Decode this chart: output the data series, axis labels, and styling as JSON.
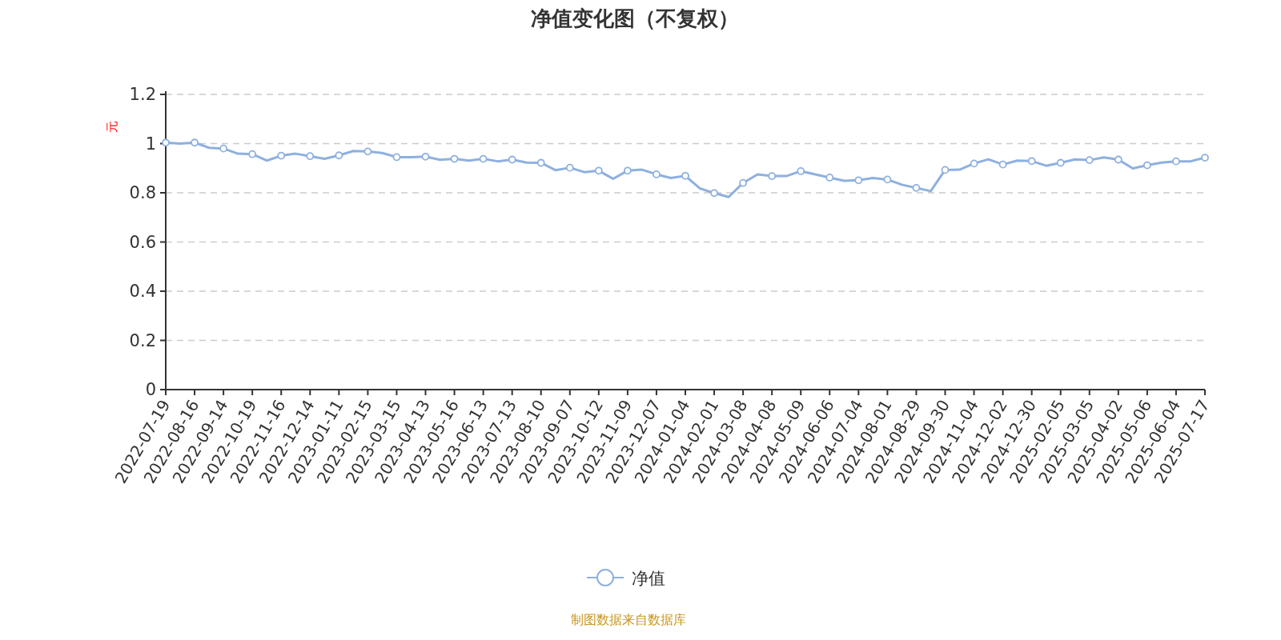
{
  "chart_data": {
    "type": "line",
    "title": "净值变化图（不复权）",
    "ylabel": "元",
    "categories": [
      "2022-07-19",
      null,
      "2022-08-16",
      null,
      "2022-09-14",
      null,
      "2022-10-19",
      null,
      "2022-11-16",
      null,
      "2022-12-14",
      null,
      "2023-01-11",
      null,
      "2023-02-15",
      null,
      "2023-03-15",
      null,
      "2023-04-13",
      null,
      "2023-05-16",
      null,
      "2023-06-13",
      null,
      "2023-07-13",
      null,
      "2023-08-10",
      null,
      "2023-09-07",
      null,
      "2023-10-12",
      null,
      "2023-11-09",
      null,
      "2023-12-07",
      null,
      "2024-01-04",
      null,
      "2024-02-01",
      null,
      "2024-03-08",
      null,
      "2024-04-08",
      null,
      "2024-05-09",
      null,
      "2024-06-06",
      null,
      "2024-07-04",
      null,
      "2024-08-01",
      null,
      "2024-08-29",
      null,
      "2024-09-30",
      null,
      "2024-11-04",
      null,
      "2024-12-02",
      null,
      "2024-12-30",
      null,
      "2025-02-05",
      null,
      "2025-03-05",
      null,
      "2025-04-02",
      null,
      "2025-05-06",
      null,
      "2025-06-04",
      null,
      "2025-07-17"
    ],
    "series": [
      {
        "name": "净值",
        "color": "#8eb0e0",
        "values": [
          1.004,
          1.0,
          1.004,
          0.983,
          0.98,
          0.959,
          0.957,
          0.931,
          0.951,
          0.959,
          0.949,
          0.938,
          0.952,
          0.97,
          0.968,
          0.962,
          0.945,
          0.945,
          0.947,
          0.934,
          0.938,
          0.931,
          0.938,
          0.928,
          0.935,
          0.923,
          0.922,
          0.892,
          0.902,
          0.884,
          0.89,
          0.857,
          0.89,
          0.894,
          0.875,
          0.86,
          0.869,
          0.818,
          0.799,
          0.783,
          0.84,
          0.875,
          0.868,
          0.868,
          0.888,
          0.875,
          0.862,
          0.849,
          0.851,
          0.86,
          0.854,
          0.833,
          0.82,
          0.807,
          0.893,
          0.894,
          0.919,
          0.936,
          0.915,
          0.931,
          0.929,
          0.91,
          0.922,
          0.936,
          0.933,
          0.944,
          0.935,
          0.899,
          0.912,
          0.923,
          0.928,
          0.928,
          0.943
        ]
      }
    ],
    "ylim": [
      0,
      1.2
    ],
    "yticks": [
      0,
      0.2,
      0.4,
      0.6,
      0.8,
      1,
      1.2
    ],
    "grid": "y",
    "legend": "bottom",
    "marker": "circle",
    "line_style": "solid",
    "annotations": [
      "制图数据来自数据库"
    ]
  }
}
